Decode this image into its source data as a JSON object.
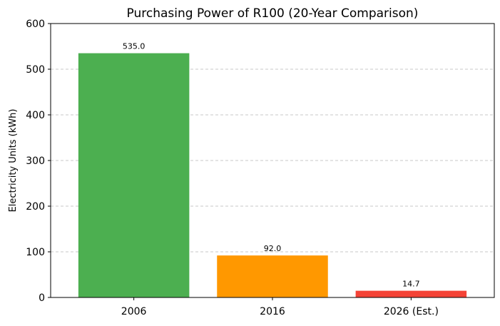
{
  "chart_data": {
    "type": "bar",
    "title": "Purchasing Power of R100 (20-Year Comparison)",
    "xlabel": "",
    "ylabel": "Electricity Units (kWh)",
    "categories": [
      "2006",
      "2016",
      "2026 (Est.)"
    ],
    "values": [
      535.0,
      92.0,
      14.7
    ],
    "value_labels": [
      "535.0",
      "92.0",
      "14.7"
    ],
    "colors": [
      "#4caf50",
      "#ff9800",
      "#f44336"
    ],
    "ylim": [
      0,
      600
    ],
    "yticks": [
      0,
      100,
      200,
      300,
      400,
      500,
      600
    ],
    "ytick_labels": [
      "0",
      "100",
      "200",
      "300",
      "400",
      "500",
      "600"
    ],
    "grid": "y-dashed"
  }
}
